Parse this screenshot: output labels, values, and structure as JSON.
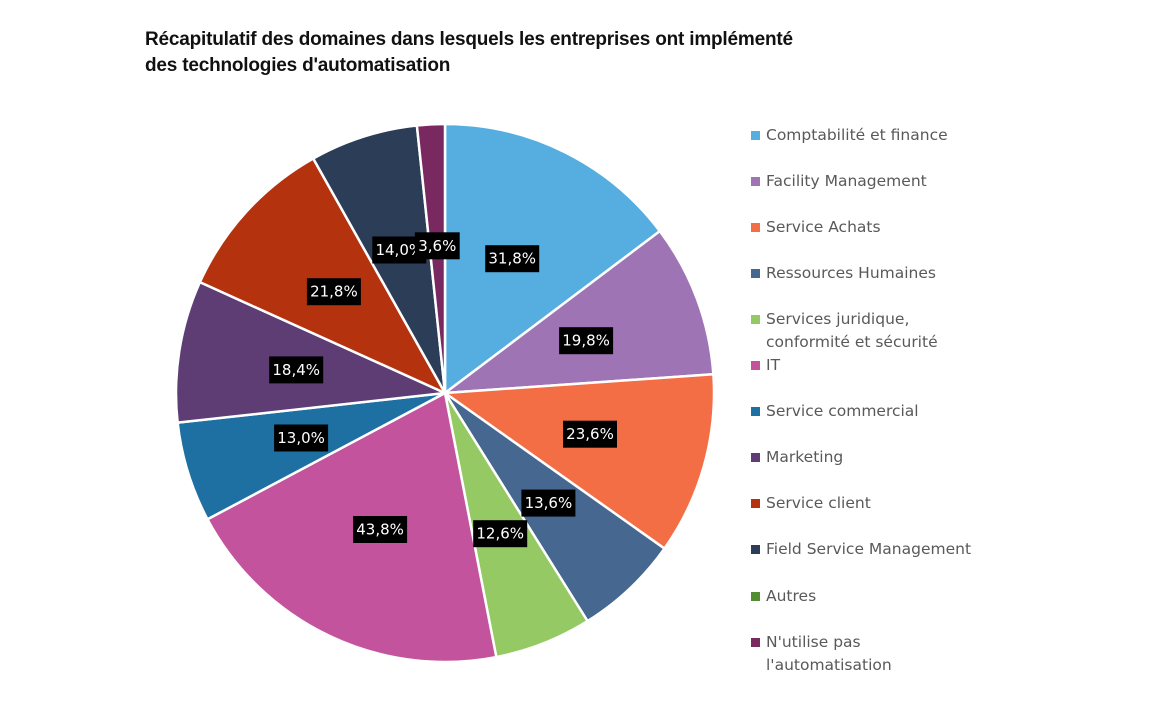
{
  "chart_data": {
    "type": "pie",
    "title": "Récapitulatif des domaines dans lesquels les entreprises ont implémenté des technologies d'automatisation",
    "title_lines": [
      "Récapitulatif des domaines dans lesquels les entreprises ont implémenté",
      "des technologies d'automatisation"
    ],
    "legend_position": "right",
    "slices": [
      {
        "label": "Comptabilité et finance",
        "value": 31.8,
        "data_label": "31,8%",
        "color": "#56ADE0"
      },
      {
        "label": "Facility Management",
        "value": 19.8,
        "data_label": "19,8%",
        "color": "#9E74B4"
      },
      {
        "label": "Service Achats",
        "value": 23.6,
        "data_label": "23,6%",
        "color": "#F36E44"
      },
      {
        "label": "Ressources Humaines",
        "value": 13.6,
        "data_label": "13,6%",
        "color": "#456790"
      },
      {
        "label": "Services juridique,\nconformité et sécurité",
        "value": 12.6,
        "data_label": "12,6%",
        "color": "#95C963"
      },
      {
        "label": "IT",
        "value": 43.8,
        "data_label": "43,8%",
        "color": "#C4539E"
      },
      {
        "label": "Service commercial",
        "value": 13.0,
        "data_label": "13,0%",
        "color": "#1E6FA2"
      },
      {
        "label": "Marketing",
        "value": 18.4,
        "data_label": "18,4%",
        "color": "#5E3D74"
      },
      {
        "label": "Service client",
        "value": 21.8,
        "data_label": "21,8%",
        "color": "#B5320E"
      },
      {
        "label": "Field Service Management",
        "value": 14.0,
        "data_label": "14,0%",
        "color": "#2B3D57"
      },
      {
        "label": "Autres",
        "value": 0,
        "data_label": "",
        "color": "#548C34"
      },
      {
        "label": "N'utilise pas\nl'automatisation",
        "value": 3.6,
        "data_label": "3,6%",
        "color": "#7A2860"
      }
    ]
  }
}
